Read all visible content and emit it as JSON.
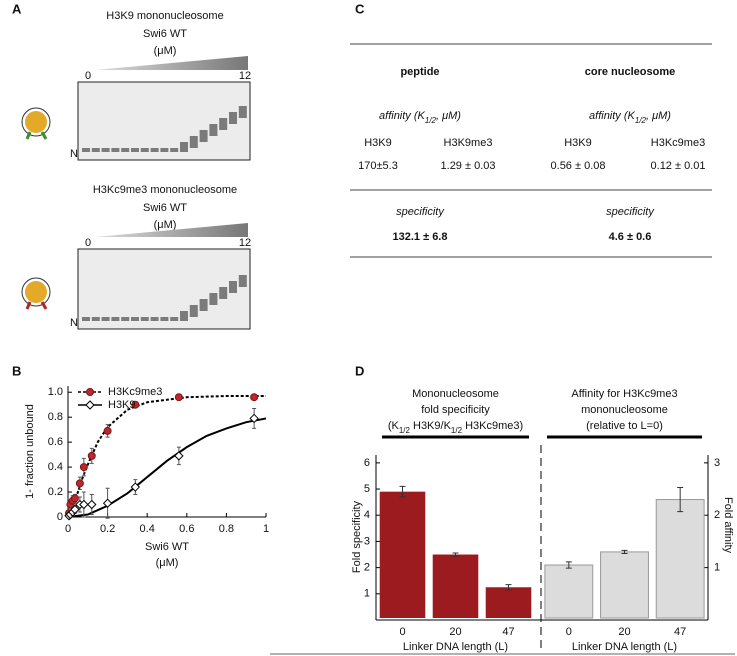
{
  "panel_labels": [
    "A",
    "B",
    "C",
    "D"
  ],
  "gels": [
    {
      "title": "H3K9 mononucleosome",
      "titrant": "Swi6 WT",
      "unit": "(μM)",
      "range_labels": [
        "0",
        "12"
      ],
      "band_label": "N"
    },
    {
      "title": "H3Kc9me3 mononucleosome",
      "titrant": "Swi6 WT",
      "unit": "(μM)",
      "range_labels": [
        "0",
        "12"
      ],
      "band_label": "N"
    }
  ],
  "table": {
    "headers": [
      "peptide",
      "core nucleosome"
    ],
    "affinity_label": [
      "affinity  (K",
      "1/2",
      ", μM)"
    ],
    "rows": [
      [
        "H3K9",
        "H3K9me3",
        "H3K9",
        "H3Kc9me3"
      ],
      [
        "170±5.3",
        "1.29 ± 0.03",
        "0.56 ± 0.08",
        "0.12 ± 0.01"
      ]
    ],
    "specificity_label": "specificity",
    "specificity": [
      "132.1 ± 6.8",
      "4.6 ± 0.6"
    ]
  },
  "chart_data": [
    {
      "type": "scatter",
      "xlabel": "Swi6 WT",
      "xlabel_unit": "(μM)",
      "ylabel": "1- fraction unbound",
      "xlim": [
        0,
        1
      ],
      "xticks": [
        0,
        0.2,
        0.4,
        0.6,
        0.8,
        1
      ],
      "ylim": [
        0,
        1.05
      ],
      "yticks": [
        0,
        0.2,
        0.4,
        0.6,
        0.8,
        {
          "value": 1,
          "label": "1.0"
        }
      ],
      "legend": "upper-left",
      "series": [
        {
          "name": "H3Kc9me3",
          "color": "#c0272d",
          "marker": "circle",
          "line": "dotted",
          "x": [
            0.005,
            0.012,
            0.024,
            0.035,
            0.06,
            0.08,
            0.12,
            0.2,
            0.34,
            0.56,
            0.94
          ],
          "values": [
            0.03,
            0.1,
            0.13,
            0.15,
            0.27,
            0.4,
            0.49,
            0.69,
            0.9,
            0.96,
            0.96
          ],
          "errors": [
            0.02,
            0.03,
            0.04,
            0.03,
            0.05,
            0.07,
            0.06,
            0.05,
            0.02,
            0.01,
            0.02
          ],
          "fit": {
            "x": [
              0,
              0.025,
              0.05,
              0.075,
              0.1,
              0.15,
              0.2,
              0.3,
              0.4,
              0.6,
              0.8,
              1
            ],
            "values": [
              0,
              0.08,
              0.2,
              0.32,
              0.42,
              0.6,
              0.72,
              0.86,
              0.92,
              0.96,
              0.97,
              0.97
            ]
          }
        },
        {
          "name": "H3K9",
          "color": "#000000",
          "marker": "diamond",
          "line": "solid",
          "x": [
            0.005,
            0.012,
            0.024,
            0.035,
            0.06,
            0.08,
            0.12,
            0.2,
            0.34,
            0.56,
            0.94
          ],
          "values": [
            0.01,
            0.02,
            0.04,
            0.06,
            0.1,
            0.1,
            0.1,
            0.11,
            0.24,
            0.49,
            0.79
          ],
          "errors": [
            0.01,
            0.02,
            0.03,
            0.03,
            0.06,
            0.1,
            0.08,
            0.12,
            0.06,
            0.07,
            0.08
          ],
          "fit": {
            "x": [
              0,
              0.1,
              0.2,
              0.3,
              0.4,
              0.5,
              0.6,
              0.7,
              0.8,
              0.9,
              1
            ],
            "values": [
              0,
              0.02,
              0.09,
              0.19,
              0.32,
              0.45,
              0.56,
              0.65,
              0.71,
              0.76,
              0.79
            ]
          }
        }
      ]
    },
    {
      "type": "bar",
      "ylabel": "Fold specificity",
      "ylim": [
        0,
        6.3
      ],
      "yticks": [
        1,
        2,
        3,
        4,
        5,
        6
      ],
      "y2label": "Fold affinity",
      "y2lim": [
        0,
        3.15
      ],
      "y2ticks": [
        1,
        2,
        3
      ],
      "groups": [
        {
          "title": [
            "Mononucleosome",
            "fold specificity"
          ],
          "title_parts": [
            "(K",
            "1/2",
            " H3K9/K",
            "1/2",
            " H3Kc9me3)"
          ],
          "categories": [
            "0",
            "20",
            "47"
          ],
          "values": [
            4.9,
            2.5,
            1.25
          ],
          "errors": [
            0.2,
            0.06,
            0.1
          ],
          "color": "#9b1b1f",
          "xlabel": "Linker DNA length (L)"
        },
        {
          "title": [
            "Affinity for H3Kc9me3",
            "mononucleosome",
            "(relative to L=0)"
          ],
          "categories": [
            "0",
            "20",
            "47"
          ],
          "values": [
            1.05,
            1.3,
            2.3
          ],
          "errors": [
            0.06,
            0.03,
            0.23
          ],
          "color": "#dcdcdc",
          "axis": "y2",
          "xlabel": "Linker DNA length (L)"
        }
      ]
    }
  ]
}
